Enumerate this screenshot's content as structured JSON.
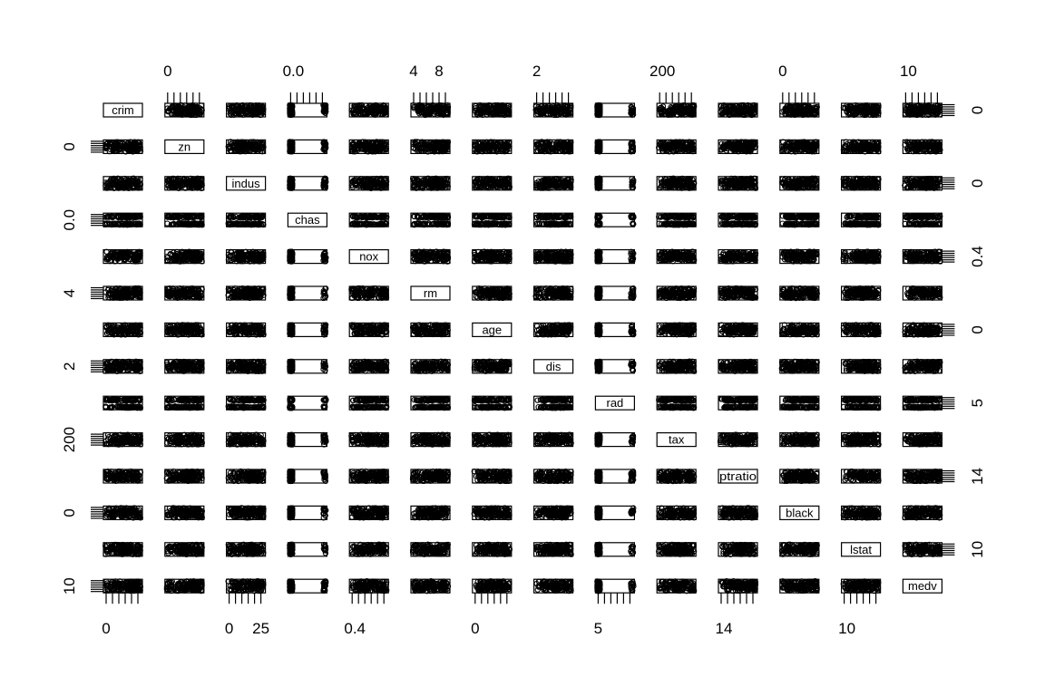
{
  "chart_data": {
    "type": "scatter",
    "kind": "scatterplot-matrix",
    "variables": [
      "crim",
      "zn",
      "indus",
      "chas",
      "nox",
      "rm",
      "age",
      "dis",
      "rad",
      "tax",
      "ptratio",
      "black",
      "lstat",
      "medv"
    ],
    "diagonal_labels": [
      "crim",
      "zn",
      "indus",
      "chas",
      "nox",
      "rm",
      "age",
      "dis",
      "rad",
      "tax",
      "ptratio",
      "black",
      "lstat",
      "medv"
    ],
    "top_axis_labels": [
      {
        "col": 1,
        "labels": [
          "0"
        ]
      },
      {
        "col": 3,
        "labels": [
          "0.0"
        ]
      },
      {
        "col": 5,
        "labels": [
          "4",
          "8"
        ]
      },
      {
        "col": 7,
        "labels": [
          "2"
        ]
      },
      {
        "col": 9,
        "labels": [
          "200"
        ]
      },
      {
        "col": 11,
        "labels": [
          "0"
        ]
      },
      {
        "col": 13,
        "labels": [
          "10"
        ]
      }
    ],
    "bottom_axis_labels": [
      {
        "col": 0,
        "labels": [
          "0"
        ]
      },
      {
        "col": 2,
        "labels": [
          "0",
          "25"
        ]
      },
      {
        "col": 4,
        "labels": [
          "0.4"
        ]
      },
      {
        "col": 6,
        "labels": [
          "0"
        ]
      },
      {
        "col": 8,
        "labels": [
          "5"
        ]
      },
      {
        "col": 10,
        "labels": [
          "14"
        ]
      },
      {
        "col": 12,
        "labels": [
          "10"
        ]
      }
    ],
    "left_axis_labels": [
      {
        "row": 1,
        "labels": [
          "0"
        ]
      },
      {
        "row": 3,
        "labels": [
          "0.0"
        ]
      },
      {
        "row": 5,
        "labels": [
          "4"
        ]
      },
      {
        "row": 7,
        "labels": [
          "2"
        ]
      },
      {
        "row": 9,
        "labels": [
          "200"
        ]
      },
      {
        "row": 11,
        "labels": [
          "0"
        ]
      },
      {
        "row": 13,
        "labels": [
          "10"
        ]
      }
    ],
    "right_axis_labels": [
      {
        "row": 0,
        "labels": [
          "0"
        ]
      },
      {
        "row": 2,
        "labels": [
          "0"
        ]
      },
      {
        "row": 4,
        "labels": [
          "0.4"
        ]
      },
      {
        "row": 6,
        "labels": [
          "0"
        ]
      },
      {
        "row": 8,
        "labels": [
          "5"
        ]
      },
      {
        "row": 10,
        "labels": [
          "14"
        ]
      },
      {
        "row": 12,
        "labels": [
          "10"
        ]
      }
    ],
    "title": "",
    "grid": false,
    "legend": "none"
  }
}
